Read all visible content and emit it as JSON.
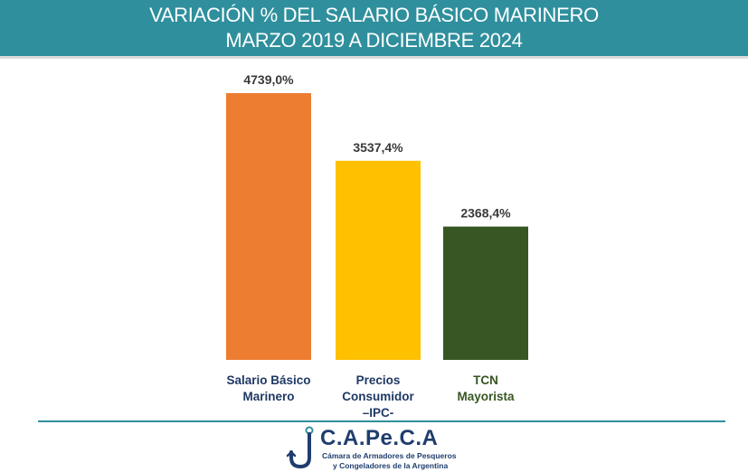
{
  "header": {
    "title_line1": "VARIACIÓN % DEL SALARIO BÁSICO MARINERO",
    "title_line2": "MARZO 2019 A DICIEMBRE 2024"
  },
  "chart_data": {
    "type": "bar",
    "title": "VARIACIÓN % DEL SALARIO BÁSICO MARINERO MARZO 2019 A DICIEMBRE 2024",
    "categories": [
      [
        "Salario Básico",
        "Marinero"
      ],
      [
        "Precios",
        "Consumidor",
        "–IPC-"
      ],
      [
        "TCN",
        "Mayorista"
      ]
    ],
    "values": [
      4739.0,
      3537.4,
      2368.4
    ],
    "value_labels": [
      "4739,0%",
      "3537,4%",
      "2368,4%"
    ],
    "bar_colors": [
      "#ed7d31",
      "#ffc000",
      "#375623"
    ],
    "label_colors": [
      "#1f3864",
      "#1f3864",
      "#375623"
    ],
    "ylim": [
      0,
      4739.0
    ],
    "grid": false,
    "legend": "none"
  },
  "footer": {
    "brand": "C.A.Pe.C.A",
    "sub_line1": "Cámara de Armadores de Pesqueros",
    "sub_line2": "y Congeladores de la Argentina",
    "brand_color": "#1f3d6e",
    "accent_color": "#2f8f9d"
  }
}
